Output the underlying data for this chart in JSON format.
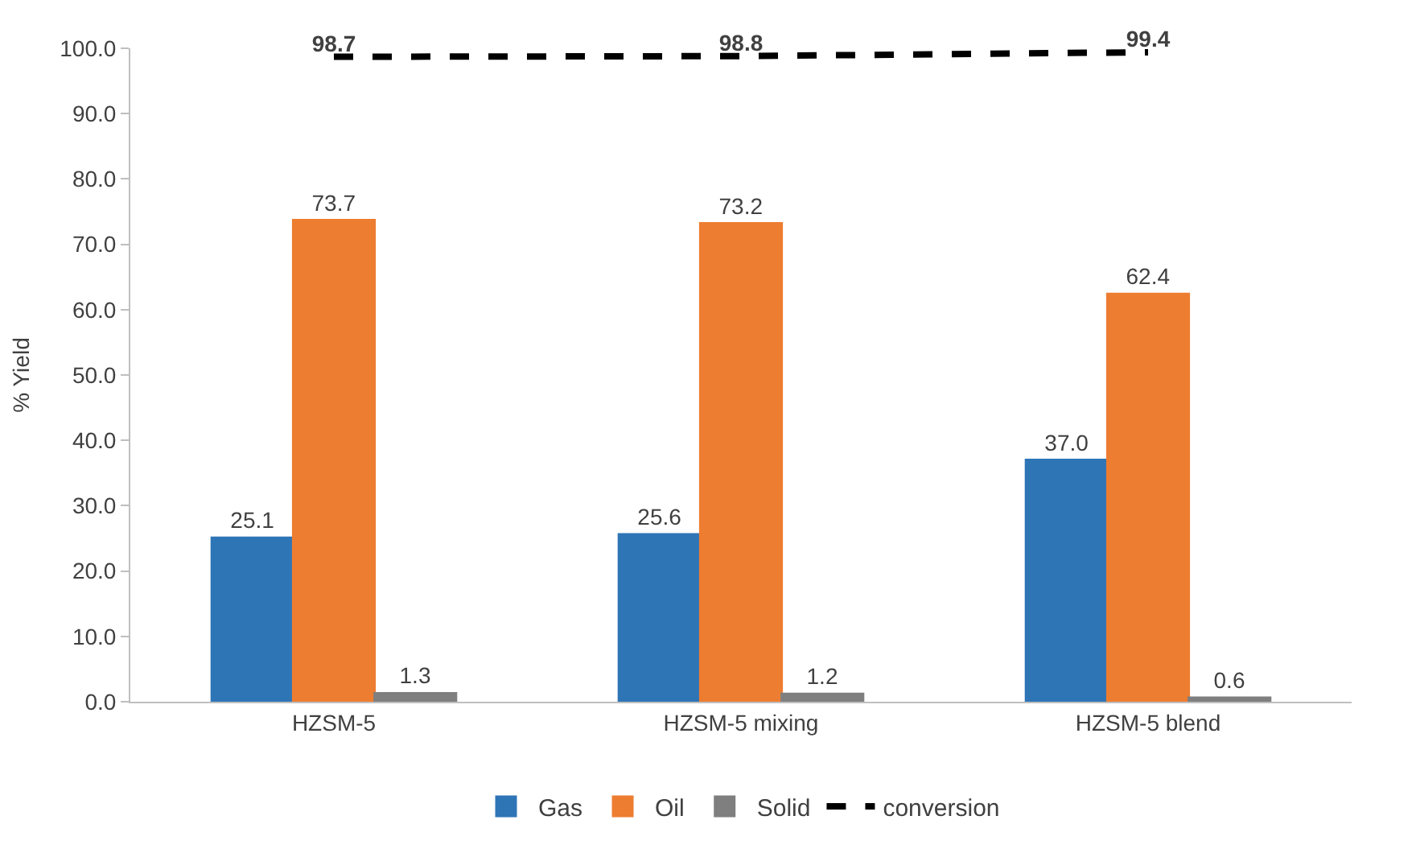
{
  "chart_data": {
    "type": "bar",
    "ylabel": "% Yield",
    "categories": [
      "HZSM-5",
      "HZSM-5 mixing",
      "HZSM-5 blend"
    ],
    "series": [
      {
        "name": "Gas",
        "color": "#2e75b6",
        "values": [
          25.1,
          25.6,
          37.0
        ],
        "value_labels": [
          "25.1",
          "25.6",
          "37.0"
        ]
      },
      {
        "name": "Oil",
        "color": "#ed7d31",
        "values": [
          73.7,
          73.2,
          62.4
        ],
        "value_labels": [
          "73.7",
          "73.2",
          "62.4"
        ]
      },
      {
        "name": "Solid",
        "color": "#7f7f7f",
        "values": [
          1.3,
          1.2,
          0.6
        ],
        "value_labels": [
          "1.3",
          "1.2",
          "0.6"
        ]
      },
      {
        "name": "conversion",
        "type": "line",
        "color": "#000000",
        "line_style": "dashed",
        "marker": "none",
        "values": [
          98.7,
          98.8,
          99.4
        ],
        "value_labels": [
          "98.7",
          "98.8",
          "99.4"
        ]
      }
    ],
    "ylim": [
      0,
      100
    ],
    "yticks": [
      {
        "value": 0,
        "label": "0.0"
      },
      {
        "value": 10,
        "label": "10.0"
      },
      {
        "value": 20,
        "label": "20.0"
      },
      {
        "value": 30,
        "label": "30.0"
      },
      {
        "value": 40,
        "label": "40.0"
      },
      {
        "value": 50,
        "label": "50.0"
      },
      {
        "value": 60,
        "label": "60.0"
      },
      {
        "value": 70,
        "label": "70.0"
      },
      {
        "value": 80,
        "label": "80.0"
      },
      {
        "value": 90,
        "label": "90.0"
      },
      {
        "value": 100,
        "label": "100.0"
      }
    ],
    "legend": "bottom"
  }
}
